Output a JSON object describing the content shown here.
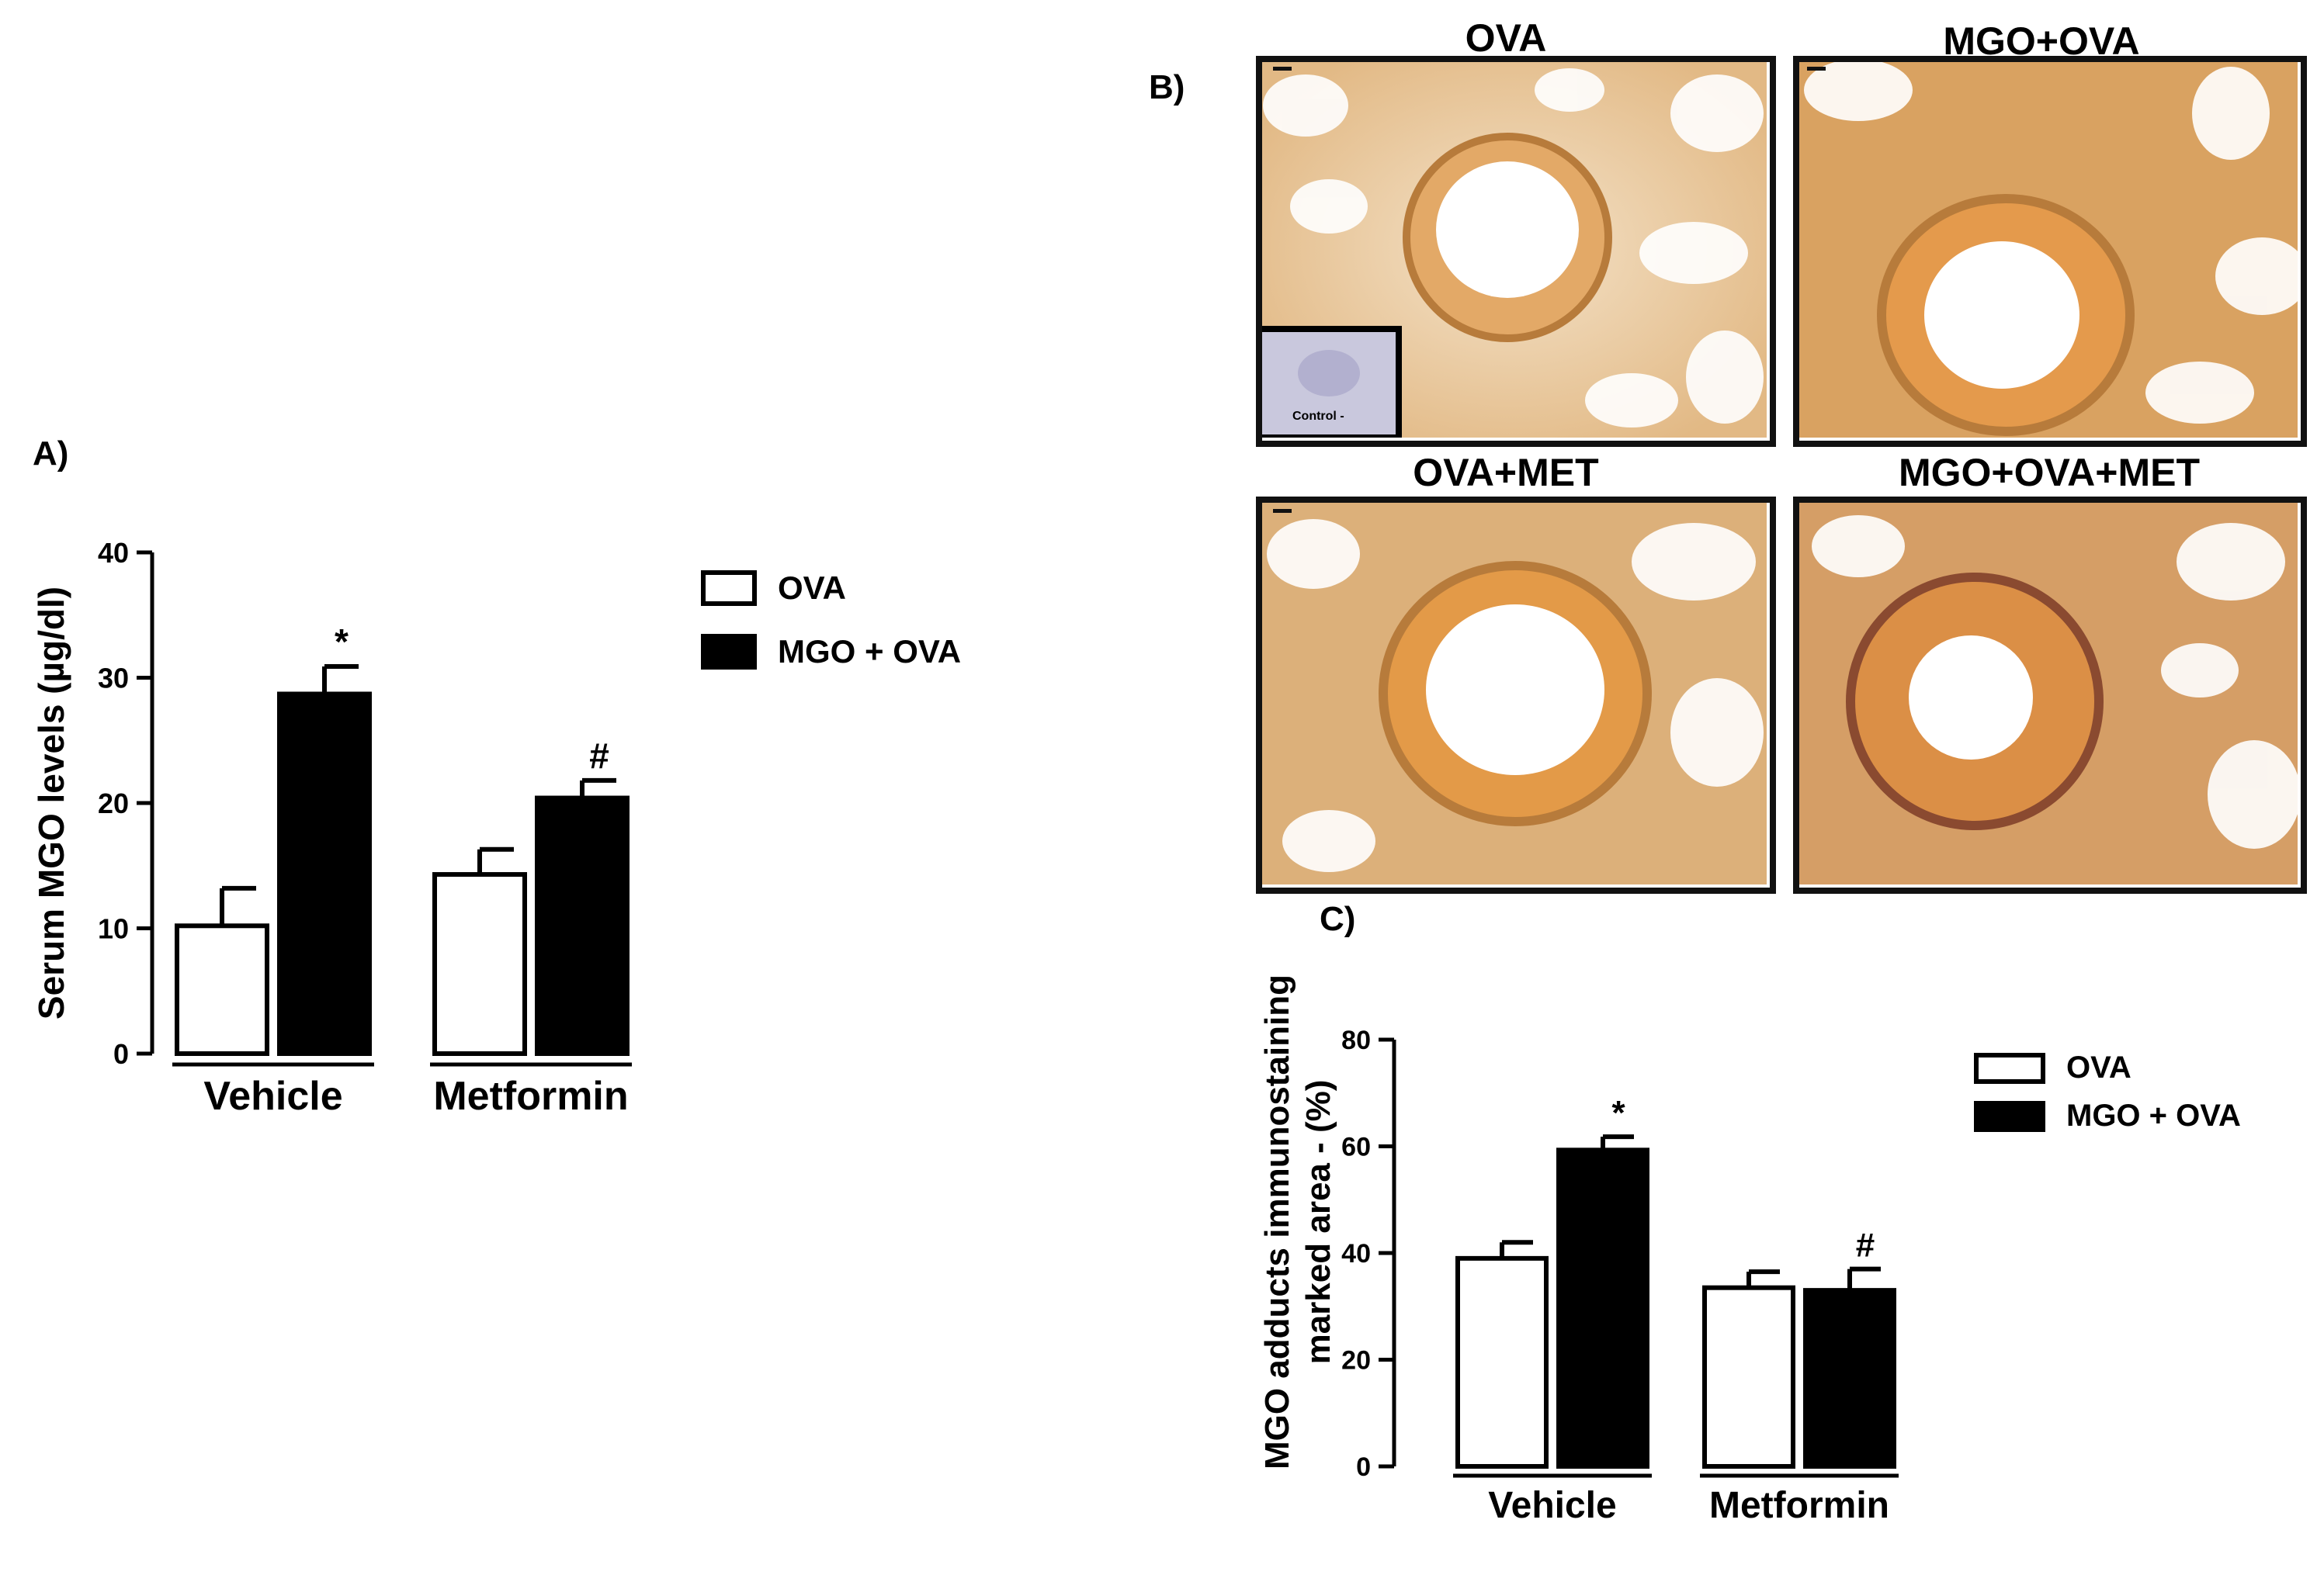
{
  "panels": {
    "a": "A)",
    "b": "B)",
    "c": "C)"
  },
  "micrographs": [
    {
      "title": "OVA",
      "inset_label": "Control -"
    },
    {
      "title": "MGO+OVA"
    },
    {
      "title": "OVA+MET"
    },
    {
      "title": "MGO+OVA+MET"
    }
  ],
  "colors": {
    "ova_fill": "#ffffff",
    "mgo_ova_fill": "#000000",
    "stain_orange": "#d89a4a",
    "stain_tissue": "#e8c9a0",
    "background": "#ffffff"
  },
  "chart_data": [
    {
      "type": "bar",
      "panel": "A)",
      "categories": [
        "Vehicle",
        "Metformin"
      ],
      "series": [
        {
          "name": "OVA",
          "values": [
            10.2,
            14.3
          ],
          "errors": [
            3.0,
            2.0
          ]
        },
        {
          "name": "MGO + OVA",
          "values": [
            28.7,
            20.4
          ],
          "errors": [
            2.2,
            1.4
          ]
        }
      ],
      "annotations": [
        {
          "series": "MGO + OVA",
          "category": "Vehicle",
          "text": "*"
        },
        {
          "series": "MGO + OVA",
          "category": "Metformin",
          "text": "#"
        }
      ],
      "ylabel": "Serum MGO levels (µg/dl)",
      "xlabel": "",
      "ylim": [
        0,
        40
      ],
      "yticks": [
        0,
        10,
        20,
        30,
        40
      ],
      "legend": [
        "OVA",
        "MGO + OVA"
      ],
      "legend_position": "right",
      "grid": false
    },
    {
      "type": "bar",
      "panel": "C)",
      "categories": [
        "Vehicle",
        "Metformin"
      ],
      "series": [
        {
          "name": "OVA",
          "values": [
            39,
            33.5
          ],
          "errors": [
            3.0,
            3.0
          ]
        },
        {
          "name": "MGO + OVA",
          "values": [
            59.3,
            33
          ],
          "errors": [
            2.5,
            4.0
          ]
        }
      ],
      "annotations": [
        {
          "series": "MGO + OVA",
          "category": "Vehicle",
          "text": "*"
        },
        {
          "series": "MGO + OVA",
          "category": "Metformin",
          "text": "#"
        }
      ],
      "ylabel_lines": [
        "MGO adducts immunostaining",
        "marked area - (%)"
      ],
      "xlabel": "",
      "ylim": [
        0,
        80
      ],
      "yticks": [
        0,
        20,
        40,
        60,
        80
      ],
      "legend": [
        "OVA",
        "MGO + OVA"
      ],
      "legend_position": "right",
      "grid": false
    }
  ]
}
